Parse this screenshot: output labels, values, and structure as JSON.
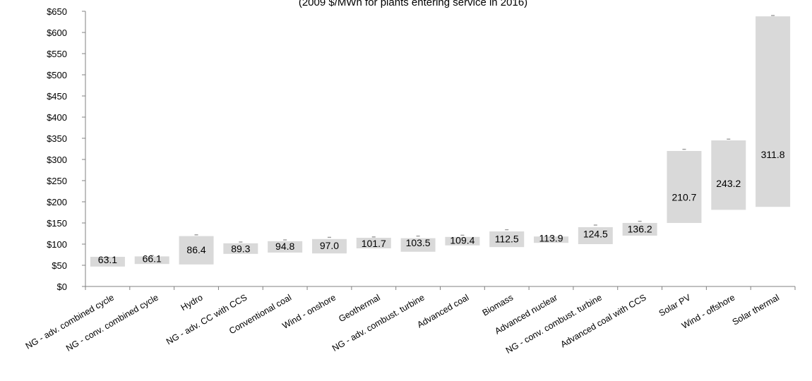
{
  "chart_data": {
    "type": "bar",
    "title": "",
    "subtitle": "(2009 $/MWh for plants entering service in 2016)",
    "xlabel": "",
    "ylabel": "",
    "ylim": [
      0,
      650
    ],
    "ytick_step": 50,
    "ytick_labels": [
      "$0",
      "$50",
      "$100",
      "$150",
      "$200",
      "$250",
      "$300",
      "$350",
      "$400",
      "$450",
      "$500",
      "$550",
      "$600",
      "$650"
    ],
    "grid": false,
    "legend": "none",
    "bar_color": "#d9d9d9",
    "categories": [
      "NG - adv. combined cycle",
      "NG - conv. combined cycle",
      "Hydro",
      "NG - adv. CC with CCS",
      "Conventional coal",
      "Wind - onshore",
      "Geothermal",
      "NG - adv. combust. turbine",
      "Advanced coal",
      "Biomass",
      "Advanced nuclear",
      "NG - conv. combust. turbine",
      "Advanced coal with CCS",
      "Solar PV",
      "Wind - offshore",
      "Solar thermal"
    ],
    "series": [
      {
        "role": "range_low",
        "values": [
          47,
          53,
          52,
          77,
          80,
          78,
          90,
          82,
          97,
          93,
          103,
          100,
          120,
          150,
          181,
          188
        ]
      },
      {
        "role": "range_high",
        "values": [
          70,
          71,
          119,
          102,
          107,
          112,
          115,
          114,
          117,
          130,
          118,
          140,
          150,
          320,
          345,
          638
        ]
      },
      {
        "role": "average",
        "values": [
          63.1,
          66.1,
          86.4,
          89.3,
          94.8,
          97.0,
          101.7,
          103.5,
          109.4,
          112.5,
          113.9,
          124.5,
          136.2,
          210.7,
          243.2,
          311.8
        ]
      },
      {
        "role": "marker",
        "values": [
          68,
          73,
          122,
          105,
          110,
          116,
          117,
          119,
          121,
          134,
          116,
          145,
          154,
          324,
          348,
          640
        ]
      }
    ],
    "data_labels": [
      "63.1",
      "66.1",
      "86.4",
      "89.3",
      "94.8",
      "97.0",
      "101.7",
      "103.5",
      "109.4",
      "112.5",
      "113.9",
      "124.5",
      "136.2",
      "210.7",
      "243.2",
      "311.8"
    ]
  }
}
